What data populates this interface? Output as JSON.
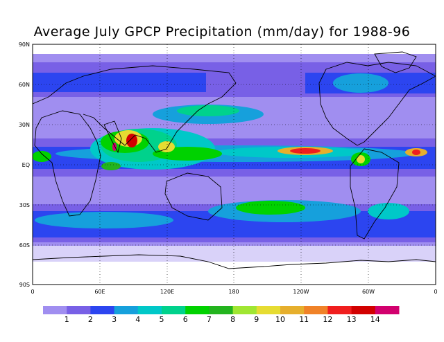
{
  "title": "Average July GPCP Precipitation (mm/day) for 1988-96",
  "lat_labels": [
    "90N",
    "60N",
    "30N",
    "EQ",
    "30S",
    "60S",
    "90S"
  ],
  "lon_labels": [
    "0",
    "60E",
    "120E",
    "180",
    "120W",
    "60W",
    "0"
  ],
  "colorbar": {
    "labels": [
      "1",
      "2",
      "3",
      "4",
      "5",
      "6",
      "7",
      "8",
      "9",
      "10",
      "11",
      "12",
      "13",
      "14"
    ],
    "colors": [
      "#a08ef0",
      "#7860e6",
      "#2c45f0",
      "#16a0dc",
      "#00c8c8",
      "#00d28c",
      "#00d200",
      "#23b41e",
      "#a0e632",
      "#e6dc32",
      "#e6af2d",
      "#f08228",
      "#f01e1e",
      "#d20000",
      "#d2006e"
    ]
  },
  "colors": {
    "ocean_base": "#a08ef0",
    "land_line": "#000000",
    "no_data": "#ffffff"
  }
}
